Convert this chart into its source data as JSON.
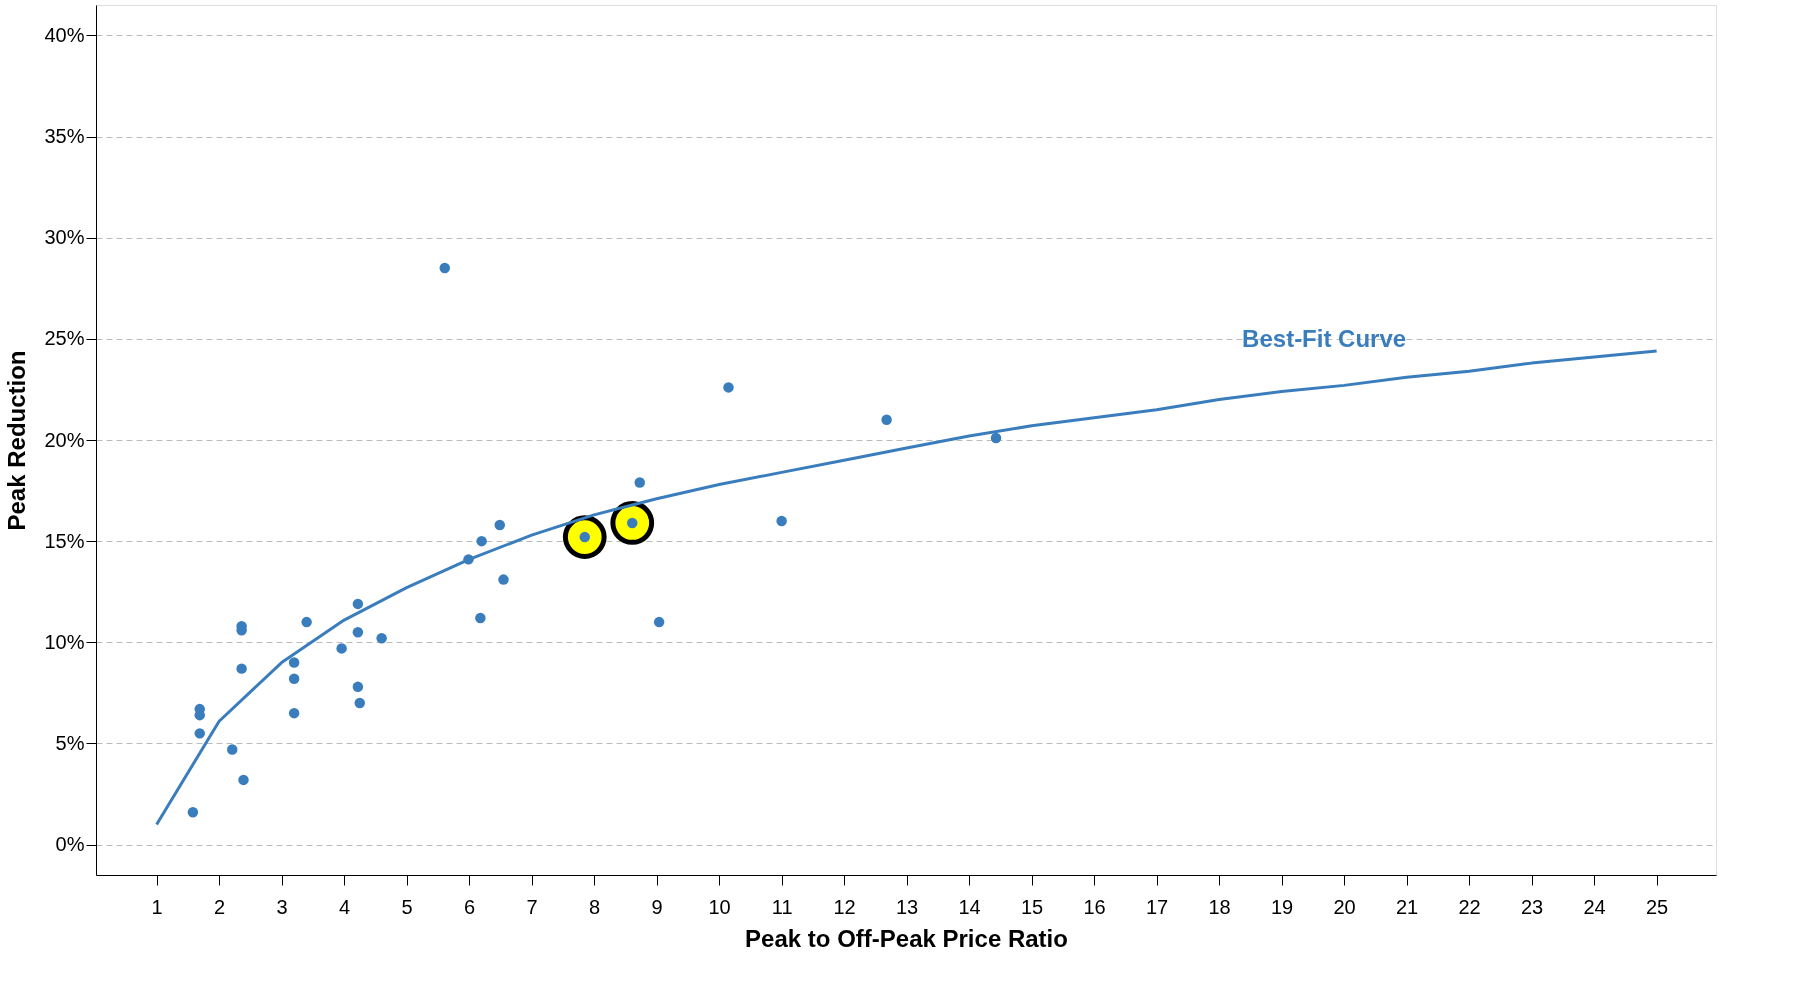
{
  "chart_data": {
    "type": "scatter",
    "xlabel": "Peak to Off-Peak Price Ratio",
    "ylabel": "Peak Reduction",
    "xlim": [
      0.03,
      25.95
    ],
    "xticks": [
      1,
      2,
      3,
      4,
      5,
      6,
      7,
      8,
      9,
      10,
      11,
      12,
      13,
      14,
      15,
      16,
      17,
      18,
      19,
      20,
      21,
      22,
      23,
      24,
      25
    ],
    "ylim": [
      -1.5,
      41.5
    ],
    "yticks": [
      {
        "value": 0,
        "label": "0%"
      },
      {
        "value": 5,
        "label": "5%"
      },
      {
        "value": 10,
        "label": "10%"
      },
      {
        "value": 15,
        "label": "15%"
      },
      {
        "value": 20,
        "label": "20%"
      },
      {
        "value": 25,
        "label": "25%"
      },
      {
        "value": 30,
        "label": "30%"
      },
      {
        "value": 35,
        "label": "35%"
      },
      {
        "value": 40,
        "label": "40%"
      }
    ],
    "grid": "y",
    "series": [
      {
        "color": "#ffff00",
        "marker": "circle",
        "x": [
          7.85,
          8.61
        ],
        "values": [
          15.2,
          15.9
        ]
      },
      {
        "color": "#3a7dbd",
        "marker": "circle",
        "x": [
          1.58,
          1.69,
          1.69,
          1.69,
          2.21,
          2.39,
          2.36,
          2.36,
          2.36,
          3.2,
          3.2,
          3.2,
          3.4,
          3.96,
          4.22,
          4.22,
          4.22,
          4.25,
          4.6,
          5.61,
          5.99,
          6.2,
          6.18,
          6.49,
          6.55,
          7.85,
          8.61,
          8.73,
          9.04,
          10.15,
          11.0,
          12.68,
          14.43
        ],
        "values": [
          1.6,
          6.7,
          6.4,
          5.5,
          4.7,
          3.2,
          10.8,
          10.6,
          8.7,
          9.0,
          8.2,
          6.5,
          11.0,
          9.7,
          11.9,
          10.5,
          7.8,
          7.0,
          10.2,
          28.5,
          14.1,
          15.0,
          11.2,
          15.8,
          13.1,
          15.2,
          15.9,
          17.9,
          11.0,
          22.6,
          16.0,
          21.0,
          20.1
        ]
      },
      {
        "type": "line",
        "name": "Best-Fit Curve",
        "color": "#3a7dbd",
        "line_style": "solid",
        "x": [
          1,
          2,
          3,
          4,
          5,
          6,
          7,
          8,
          9,
          10,
          11,
          12,
          13,
          14,
          15,
          16,
          17,
          18,
          19,
          20,
          21,
          22,
          23,
          24,
          25
        ],
        "values": [
          1.0,
          6.1,
          9.0,
          11.1,
          12.7,
          14.1,
          15.3,
          16.3,
          17.1,
          17.8,
          18.4,
          19.0,
          19.6,
          20.2,
          20.7,
          21.1,
          21.5,
          22.0,
          22.4,
          22.7,
          23.1,
          23.4,
          23.8,
          24.1,
          24.4
        ]
      }
    ]
  }
}
